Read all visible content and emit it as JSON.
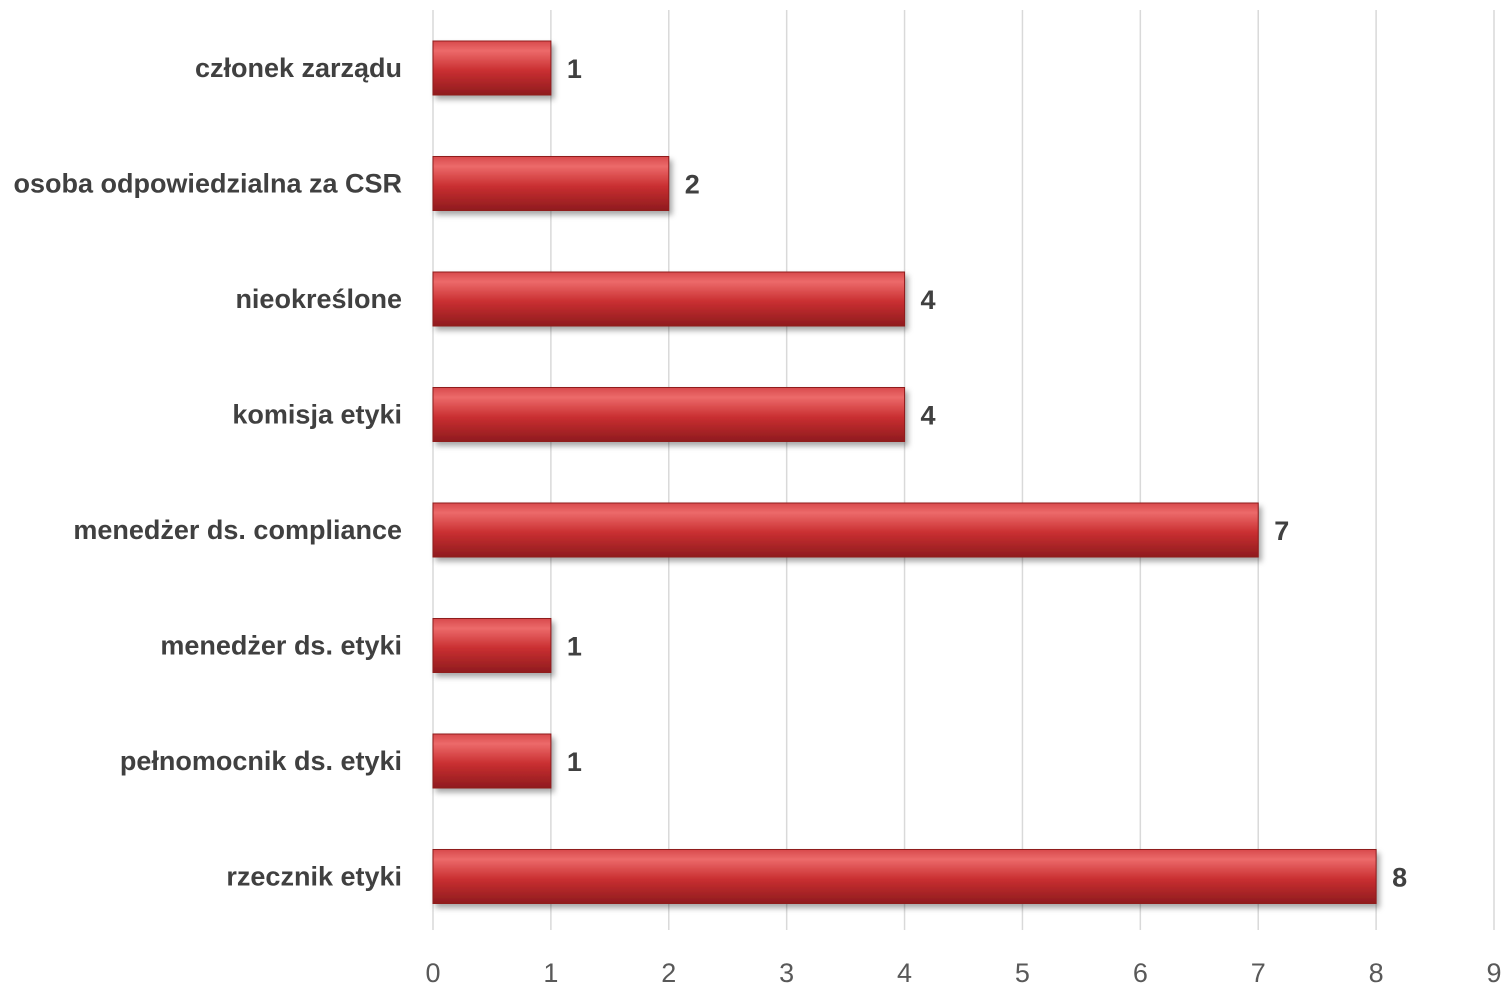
{
  "chart_data": {
    "type": "bar",
    "orientation": "horizontal",
    "categories": [
      "członek zarządu",
      "osoba odpowiedzialna za CSR",
      "nieokreślone",
      "komisja etyki",
      "menedżer ds. compliance",
      "menedżer ds. etyki",
      "pełnomocnik ds. etyki",
      "rzecznik etyki"
    ],
    "values": [
      1,
      2,
      4,
      4,
      7,
      1,
      1,
      8
    ],
    "data_labels": [
      "1",
      "2",
      "4",
      "4",
      "7",
      "1",
      "1",
      "8"
    ],
    "xlim": [
      0,
      9
    ],
    "x_ticks": [
      "0",
      "1",
      "2",
      "3",
      "4",
      "5",
      "6",
      "7",
      "8",
      "9"
    ],
    "grid": "vertical",
    "legend": "none",
    "title": "",
    "xlabel": "",
    "ylabel": "",
    "bar_color": "#c0282b",
    "bar_highlight_color": "#ec6a6a",
    "bar_shadow_color": "#8f1b1e"
  }
}
